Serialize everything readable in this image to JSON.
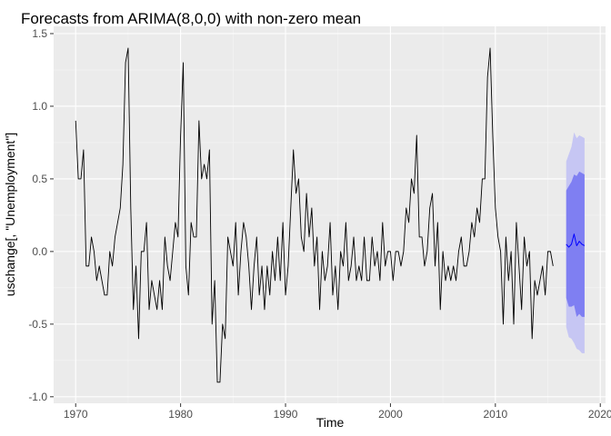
{
  "chart_data": {
    "type": "line",
    "title": "Forecasts from ARIMA(8,0,0) with non-zero mean",
    "xlabel": "Time",
    "ylabel": "uschange[, \"Unemployment\"]",
    "xlim": [
      1970,
      2020
    ],
    "ylim": [
      -1.0,
      1.5
    ],
    "x_ticks": [
      1970,
      1980,
      1990,
      2000,
      2010,
      2020
    ],
    "y_ticks": [
      -1.0,
      -0.5,
      0.0,
      0.5,
      1.0,
      1.5
    ],
    "x_tick_labels": [
      "1970",
      "1980",
      "1990",
      "2000",
      "2010",
      "2020"
    ],
    "y_tick_labels": [
      "-1.0",
      "-0.5",
      "0.0",
      "0.5",
      "1.0",
      "1.5"
    ],
    "grid": true,
    "background": "#ebebeb",
    "series": [
      {
        "role": "observed",
        "color": "#000000",
        "start": 1970.0,
        "frequency": 4,
        "values": [
          0.9,
          0.5,
          0.5,
          0.7,
          -0.1,
          -0.1,
          0.1,
          0.0,
          -0.2,
          -0.1,
          -0.2,
          -0.3,
          -0.3,
          0.0,
          -0.1,
          0.1,
          0.2,
          0.3,
          0.6,
          1.3,
          1.4,
          0.3,
          -0.4,
          -0.1,
          -0.6,
          0.0,
          0.0,
          0.2,
          -0.4,
          -0.2,
          -0.3,
          -0.4,
          -0.2,
          -0.4,
          0.1,
          -0.1,
          -0.2,
          0.0,
          0.2,
          0.1,
          0.8,
          1.3,
          -0.1,
          -0.3,
          0.2,
          0.1,
          0.1,
          0.9,
          0.5,
          0.6,
          0.5,
          0.7,
          -0.5,
          -0.2,
          -0.9,
          -0.9,
          -0.5,
          -0.6,
          0.1,
          0.0,
          -0.1,
          0.2,
          -0.3,
          0.0,
          0.2,
          0.1,
          -0.1,
          -0.4,
          -0.1,
          0.1,
          -0.3,
          -0.1,
          -0.4,
          -0.1,
          -0.3,
          0.0,
          -0.2,
          0.1,
          -0.2,
          0.2,
          -0.3,
          -0.1,
          0.3,
          0.7,
          0.4,
          0.5,
          0.1,
          0.0,
          0.4,
          0.1,
          0.3,
          -0.1,
          0.1,
          -0.4,
          0.0,
          -0.2,
          -0.1,
          0.2,
          -0.3,
          -0.1,
          -0.4,
          0.0,
          -0.1,
          0.2,
          -0.2,
          -0.1,
          0.1,
          -0.2,
          -0.1,
          -0.2,
          0.1,
          -0.2,
          -0.2,
          0.1,
          -0.1,
          0.0,
          -0.2,
          0.2,
          -0.1,
          0.0,
          0.0,
          -0.2,
          0.0,
          0.0,
          -0.1,
          0.0,
          0.3,
          0.2,
          0.5,
          0.4,
          0.8,
          0.1,
          0.1,
          -0.1,
          0.0,
          0.3,
          0.4,
          -0.1,
          0.2,
          -0.4,
          0.0,
          -0.2,
          -0.1,
          -0.2,
          -0.1,
          -0.2,
          0.0,
          0.1,
          -0.1,
          -0.1,
          0.0,
          0.2,
          0.1,
          0.3,
          0.2,
          0.5,
          0.5,
          1.2,
          1.4,
          0.8,
          0.3,
          0.1,
          0.0,
          -0.5,
          0.1,
          -0.2,
          0.0,
          -0.5,
          0.2,
          -0.1,
          -0.4,
          0.1,
          -0.1,
          0.0,
          -0.6,
          -0.2,
          -0.3,
          -0.2,
          -0.1,
          -0.3,
          0.0,
          0.0,
          -0.1
        ]
      },
      {
        "role": "forecast",
        "color": "#0000ff",
        "start": 2016.75,
        "frequency": 4,
        "values": [
          0.05,
          0.03,
          0.05,
          0.12,
          0.04,
          0.07,
          0.05,
          0.04
        ],
        "interval_80": {
          "color": "#7f7ff2",
          "lower": [
            -0.32,
            -0.38,
            -0.38,
            -0.37,
            -0.45,
            -0.43,
            -0.45,
            -0.45
          ],
          "upper": [
            0.42,
            0.45,
            0.48,
            0.53,
            0.52,
            0.55,
            0.54,
            0.53
          ]
        },
        "interval_95": {
          "color": "#c6c6f3",
          "lower": [
            -0.52,
            -0.59,
            -0.6,
            -0.63,
            -0.67,
            -0.68,
            -0.7,
            -0.7
          ],
          "upper": [
            0.62,
            0.67,
            0.72,
            0.82,
            0.78,
            0.8,
            0.79,
            0.78
          ]
        }
      }
    ]
  }
}
